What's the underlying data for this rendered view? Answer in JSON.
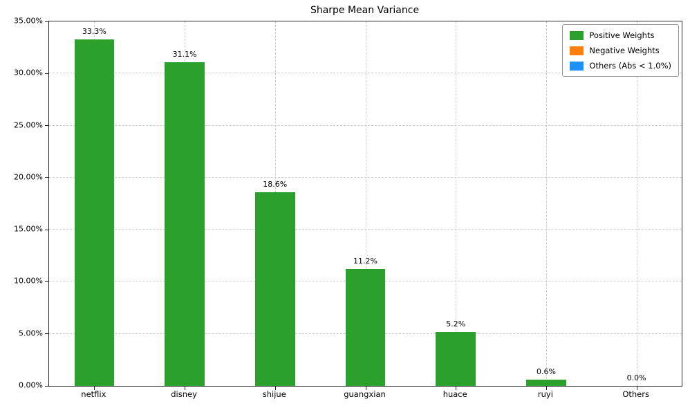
{
  "chart_data": {
    "type": "bar",
    "title": "Sharpe Mean Variance",
    "categories": [
      "netflix",
      "disney",
      "shijue",
      "guangxian",
      "huace",
      "ruyi",
      "Others"
    ],
    "values": [
      33.3,
      31.1,
      18.6,
      11.2,
      5.2,
      0.6,
      0.0
    ],
    "bar_labels": [
      "33.3%",
      "31.1%",
      "18.6%",
      "11.2%",
      "5.2%",
      "0.6%",
      "0.0%"
    ],
    "bar_color": "#2ca02c",
    "ylim": [
      0,
      35
    ],
    "y_ticks": [
      "0.00%",
      "5.00%",
      "10.00%",
      "15.00%",
      "20.00%",
      "25.00%",
      "30.00%",
      "35.00%"
    ],
    "grid": true,
    "legend": {
      "position": "top-right",
      "entries": [
        {
          "label": "Positive Weights",
          "color": "#2ca02c"
        },
        {
          "label": "Negative Weights",
          "color": "#ff7f0e"
        },
        {
          "label": "Others (Abs < 1.0%)",
          "color": "#1e90ff"
        }
      ]
    }
  }
}
